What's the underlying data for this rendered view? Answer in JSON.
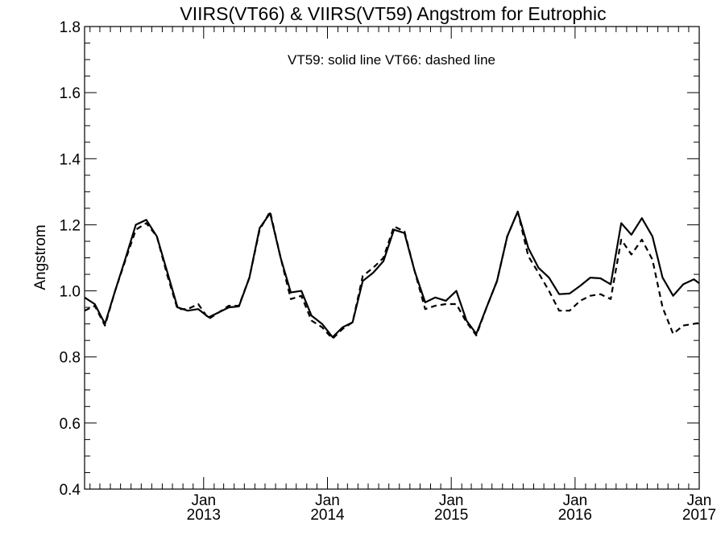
{
  "chart_data": {
    "type": "line",
    "title": "VIIRS(VT66) & VIIRS(VT59)  Angstrom for Eutrophic",
    "annotation": "VT59: solid line   VT66: dashed line",
    "xlabel": "",
    "ylabel": "Angstrom",
    "ylim": [
      0.4,
      1.8
    ],
    "xlim": [
      "2012-01-16",
      "2017-01-01"
    ],
    "y_ticks": [
      "0.4",
      "0.6",
      "0.8",
      "1.0",
      "1.2",
      "1.4",
      "1.6",
      "1.8"
    ],
    "x_ticks": [
      {
        "month": "Jan",
        "year": "2013"
      },
      {
        "month": "Jan",
        "year": "2014"
      },
      {
        "month": "Jan",
        "year": "2015"
      },
      {
        "month": "Jan",
        "year": "2016"
      },
      {
        "month": "Jan",
        "year": "2017"
      }
    ],
    "grid": false,
    "line_color": "#000000",
    "x": [
      "2012-01-16",
      "2012-02-15",
      "2012-03-16",
      "2012-04-15",
      "2012-05-16",
      "2012-06-15",
      "2012-07-16",
      "2012-08-16",
      "2012-09-15",
      "2012-10-16",
      "2012-11-15",
      "2012-12-16",
      "2013-01-16",
      "2013-02-15",
      "2013-03-16",
      "2013-04-15",
      "2013-05-16",
      "2013-06-15",
      "2013-07-16",
      "2013-08-16",
      "2013-09-15",
      "2013-10-16",
      "2013-11-15",
      "2013-12-16",
      "2014-01-16",
      "2014-02-15",
      "2014-03-16",
      "2014-04-15",
      "2014-05-16",
      "2014-06-15",
      "2014-07-16",
      "2014-08-16",
      "2014-09-15",
      "2014-10-16",
      "2014-11-15",
      "2014-12-16",
      "2015-01-16",
      "2015-02-15",
      "2015-03-16",
      "2015-04-15",
      "2015-05-16",
      "2015-06-15",
      "2015-07-16",
      "2015-08-16",
      "2015-09-15",
      "2015-10-16",
      "2015-11-15",
      "2015-12-16",
      "2016-01-16",
      "2016-02-15",
      "2016-03-16",
      "2016-04-15",
      "2016-05-16",
      "2016-06-15",
      "2016-07-16",
      "2016-08-16",
      "2016-09-15",
      "2016-10-16",
      "2016-11-15",
      "2016-12-16",
      "2017-01-01"
    ],
    "series": [
      {
        "name": "VT59",
        "style": "solid",
        "values": [
          0.98,
          0.96,
          0.9,
          1.0,
          1.1,
          1.2,
          1.215,
          1.165,
          1.06,
          0.95,
          0.94,
          0.945,
          0.92,
          0.935,
          0.95,
          0.953,
          1.04,
          1.19,
          1.235,
          1.1,
          0.995,
          1.0,
          0.925,
          0.9,
          0.86,
          0.89,
          0.905,
          1.03,
          1.055,
          1.09,
          1.185,
          1.175,
          1.06,
          0.965,
          0.98,
          0.97,
          1.0,
          0.91,
          0.87,
          0.95,
          1.03,
          1.165,
          1.24,
          1.13,
          1.07,
          1.04,
          0.99,
          0.992,
          1.015,
          1.04,
          1.038,
          1.02,
          1.205,
          1.17,
          1.22,
          1.165,
          1.04,
          0.985,
          1.02,
          1.035,
          1.023
        ]
      },
      {
        "name": "VT66",
        "style": "dashed",
        "values": [
          0.94,
          0.955,
          0.895,
          1.0,
          1.095,
          1.185,
          1.205,
          1.165,
          1.05,
          0.945,
          0.945,
          0.96,
          0.915,
          0.935,
          0.955,
          0.955,
          1.04,
          1.185,
          1.24,
          1.1,
          0.975,
          0.985,
          0.91,
          0.89,
          0.855,
          0.885,
          0.905,
          1.045,
          1.07,
          1.1,
          1.195,
          1.18,
          1.06,
          0.945,
          0.955,
          0.96,
          0.96,
          0.905,
          0.865,
          0.95,
          1.03,
          1.165,
          1.24,
          1.105,
          1.055,
          1.0,
          0.94,
          0.94,
          0.97,
          0.985,
          0.99,
          0.975,
          1.155,
          1.11,
          1.155,
          1.095,
          0.95,
          0.87,
          0.895,
          0.9,
          0.903
        ]
      }
    ]
  }
}
